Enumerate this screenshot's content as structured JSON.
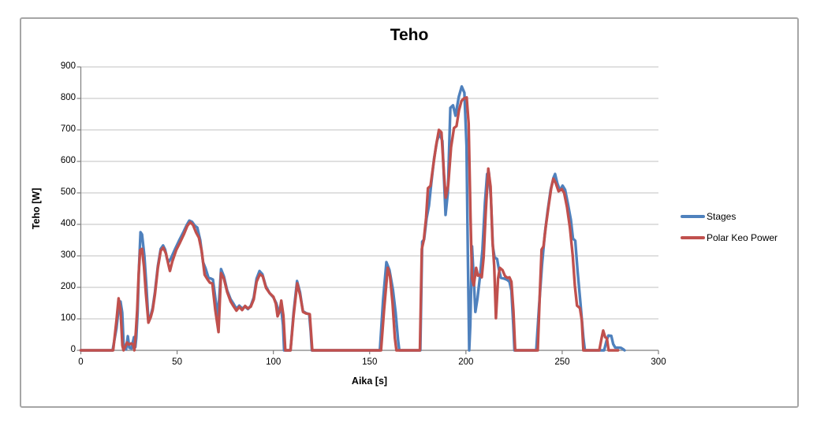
{
  "chart_data": {
    "type": "line",
    "title": "Teho",
    "xlabel": "Aika [s]",
    "ylabel": "Teho [W]",
    "xlim": [
      0,
      300
    ],
    "ylim": [
      0,
      900
    ],
    "x_ticks": [
      0,
      50,
      100,
      150,
      200,
      250,
      300
    ],
    "y_ticks": [
      0,
      100,
      200,
      300,
      400,
      500,
      600,
      700,
      800,
      900
    ],
    "grid": "horizontal",
    "legend_position": "right",
    "colors": {
      "grid": "#c0c0c0",
      "axis": "#7f7f7f",
      "frame_border": "#a6a6a6",
      "stages_blue": "#4F81BD",
      "polar_red": "#C0504D"
    },
    "series": [
      {
        "name": "Stages",
        "color": "#4F81BD",
        "points": [
          [
            0,
            0
          ],
          [
            16.5,
            0
          ],
          [
            18.5,
            70
          ],
          [
            19.8,
            140
          ],
          [
            20.6,
            155
          ],
          [
            21.5,
            120
          ],
          [
            22.3,
            10
          ],
          [
            23.5,
            3
          ],
          [
            24.4,
            45
          ],
          [
            25.2,
            8
          ],
          [
            26.3,
            6
          ],
          [
            27.6,
            42
          ],
          [
            28.3,
            10
          ],
          [
            28.8,
            40
          ],
          [
            29.5,
            120
          ],
          [
            30.2,
            260
          ],
          [
            31,
            375
          ],
          [
            31.8,
            368
          ],
          [
            33,
            300
          ],
          [
            34,
            210
          ],
          [
            35.1,
            95
          ],
          [
            36.3,
            110
          ],
          [
            37.3,
            135
          ],
          [
            38.5,
            185
          ],
          [
            40,
            268
          ],
          [
            41.5,
            322
          ],
          [
            42.7,
            333
          ],
          [
            43.8,
            320
          ],
          [
            44.8,
            290
          ],
          [
            45.8,
            282
          ],
          [
            47,
            295
          ],
          [
            49,
            322
          ],
          [
            51,
            348
          ],
          [
            53,
            372
          ],
          [
            55,
            398
          ],
          [
            56.3,
            412
          ],
          [
            57.8,
            408
          ],
          [
            59.3,
            395
          ],
          [
            60.5,
            390
          ],
          [
            62,
            350
          ],
          [
            63.5,
            280
          ],
          [
            64.8,
            260
          ],
          [
            66.3,
            230
          ],
          [
            67.5,
            228
          ],
          [
            68.6,
            225
          ],
          [
            70,
            160
          ],
          [
            71.3,
            110
          ],
          [
            72.8,
            258
          ],
          [
            74.3,
            235
          ],
          [
            76,
            190
          ],
          [
            77.8,
            162
          ],
          [
            79.3,
            148
          ],
          [
            80.8,
            132
          ],
          [
            82.3,
            142
          ],
          [
            83.8,
            133
          ],
          [
            85.3,
            139
          ],
          [
            86.8,
            131
          ],
          [
            88.3,
            142
          ],
          [
            89.8,
            168
          ],
          [
            91.3,
            228
          ],
          [
            92.8,
            252
          ],
          [
            94.3,
            242
          ],
          [
            96,
            205
          ],
          [
            98,
            182
          ],
          [
            100,
            168
          ],
          [
            101.5,
            150
          ],
          [
            102.8,
            122
          ],
          [
            104,
            138
          ],
          [
            105,
            80
          ],
          [
            105.6,
            0
          ],
          [
            108.9,
            0
          ],
          [
            110.5,
            120
          ],
          [
            112.3,
            220
          ],
          [
            113.8,
            185
          ],
          [
            115.3,
            125
          ],
          [
            117,
            118
          ],
          [
            118.6,
            115
          ],
          [
            119.4,
            60
          ],
          [
            120,
            0
          ],
          [
            155.3,
            0
          ],
          [
            157,
            160
          ],
          [
            158.7,
            280
          ],
          [
            160.3,
            255
          ],
          [
            162.1,
            192
          ],
          [
            163.5,
            120
          ],
          [
            164.8,
            30
          ],
          [
            165.4,
            0
          ],
          [
            176.3,
            0
          ],
          [
            177.3,
            345
          ],
          [
            178.3,
            352
          ],
          [
            179.6,
            420
          ],
          [
            180.8,
            460
          ],
          [
            182,
            530
          ],
          [
            183.5,
            610
          ],
          [
            185,
            665
          ],
          [
            186.3,
            688
          ],
          [
            187.8,
            665
          ],
          [
            189.4,
            430
          ],
          [
            190.6,
            500
          ],
          [
            191.9,
            770
          ],
          [
            193.3,
            778
          ],
          [
            194.6,
            745
          ],
          [
            196.3,
            805
          ],
          [
            197.8,
            838
          ],
          [
            199.2,
            818
          ],
          [
            200.3,
            650
          ],
          [
            201,
            300
          ],
          [
            201.7,
            0
          ],
          [
            202.3,
            80
          ],
          [
            203.2,
            330
          ],
          [
            204.2,
            210
          ],
          [
            204.9,
            122
          ],
          [
            206,
            165
          ],
          [
            207.3,
            235
          ],
          [
            208.6,
            320
          ],
          [
            209.9,
            470
          ],
          [
            211,
            560
          ],
          [
            211.9,
            565
          ],
          [
            213,
            480
          ],
          [
            214,
            330
          ],
          [
            214.9,
            295
          ],
          [
            216.2,
            290
          ],
          [
            217.2,
            255
          ],
          [
            218.2,
            230
          ],
          [
            219.8,
            228
          ],
          [
            221.4,
            224
          ],
          [
            222.6,
            218
          ],
          [
            223.6,
            190
          ],
          [
            224.6,
            80
          ],
          [
            225.2,
            0
          ],
          [
            236.5,
            0
          ],
          [
            238,
            140
          ],
          [
            239.5,
            270
          ],
          [
            241,
            370
          ],
          [
            242.5,
            445
          ],
          [
            244,
            510
          ],
          [
            245.5,
            548
          ],
          [
            246.3,
            560
          ],
          [
            247.5,
            530
          ],
          [
            248.8,
            508
          ],
          [
            250.2,
            523
          ],
          [
            251.5,
            510
          ],
          [
            253,
            465
          ],
          [
            254.5,
            415
          ],
          [
            255.6,
            355
          ],
          [
            256.8,
            348
          ],
          [
            258,
            250
          ],
          [
            259.5,
            150
          ],
          [
            261,
            40
          ],
          [
            261.8,
            0
          ],
          [
            271.8,
            0
          ],
          [
            273,
            30
          ],
          [
            274,
            47
          ],
          [
            275.5,
            46
          ],
          [
            276.5,
            20
          ],
          [
            277.5,
            9
          ],
          [
            280.5,
            8
          ],
          [
            281.8,
            3
          ],
          [
            282.4,
            0
          ]
        ]
      },
      {
        "name": "Polar Keo Power",
        "color": "#C0504D",
        "points": [
          [
            0,
            0
          ],
          [
            16.8,
            0
          ],
          [
            18.5,
            95
          ],
          [
            19.6,
            165
          ],
          [
            20.6,
            130
          ],
          [
            21.6,
            15
          ],
          [
            22.2,
            0
          ],
          [
            24,
            25
          ],
          [
            25,
            18
          ],
          [
            26.2,
            22
          ],
          [
            27.2,
            18
          ],
          [
            27.8,
            0
          ],
          [
            28.6,
            60
          ],
          [
            29.3,
            130
          ],
          [
            30,
            240
          ],
          [
            30.8,
            318
          ],
          [
            31.8,
            322
          ],
          [
            32.8,
            265
          ],
          [
            33.8,
            180
          ],
          [
            35.1,
            88
          ],
          [
            36.3,
            105
          ],
          [
            37.3,
            128
          ],
          [
            38.5,
            178
          ],
          [
            40,
            262
          ],
          [
            41.5,
            316
          ],
          [
            42.8,
            326
          ],
          [
            44.2,
            308
          ],
          [
            45.5,
            272
          ],
          [
            46.3,
            252
          ],
          [
            47.5,
            282
          ],
          [
            49.5,
            318
          ],
          [
            51.5,
            342
          ],
          [
            53.5,
            368
          ],
          [
            55.3,
            395
          ],
          [
            56.8,
            407
          ],
          [
            58.3,
            398
          ],
          [
            59.8,
            375
          ],
          [
            61.3,
            358
          ],
          [
            62.8,
            315
          ],
          [
            64.3,
            240
          ],
          [
            65.8,
            225
          ],
          [
            67,
            215
          ],
          [
            68.3,
            212
          ],
          [
            69.8,
            130
          ],
          [
            71.5,
            58
          ],
          [
            72.8,
            245
          ],
          [
            74.3,
            228
          ],
          [
            76,
            185
          ],
          [
            77.8,
            155
          ],
          [
            79.3,
            140
          ],
          [
            80.8,
            126
          ],
          [
            82.3,
            138
          ],
          [
            83.8,
            128
          ],
          [
            85.3,
            141
          ],
          [
            86.8,
            133
          ],
          [
            88.3,
            139
          ],
          [
            89.8,
            162
          ],
          [
            91.3,
            218
          ],
          [
            93,
            242
          ],
          [
            94.5,
            235
          ],
          [
            96.2,
            198
          ],
          [
            98,
            182
          ],
          [
            100,
            170
          ],
          [
            101.3,
            148
          ],
          [
            102.2,
            108
          ],
          [
            103.3,
            125
          ],
          [
            104.1,
            158
          ],
          [
            105.2,
            110
          ],
          [
            106.2,
            0
          ],
          [
            108.9,
            0
          ],
          [
            110.5,
            110
          ],
          [
            112.4,
            213
          ],
          [
            113.9,
            175
          ],
          [
            115.4,
            122
          ],
          [
            117,
            117
          ],
          [
            118.9,
            115
          ],
          [
            119.6,
            55
          ],
          [
            120.2,
            0
          ],
          [
            155.9,
            0
          ],
          [
            157.5,
            130
          ],
          [
            159.4,
            262
          ],
          [
            160.6,
            235
          ],
          [
            161.9,
            150
          ],
          [
            163.1,
            40
          ],
          [
            163.9,
            0
          ],
          [
            176.1,
            0
          ],
          [
            177.1,
            322
          ],
          [
            178.1,
            350
          ],
          [
            179.3,
            420
          ],
          [
            180.3,
            515
          ],
          [
            181.6,
            522
          ],
          [
            183,
            585
          ],
          [
            184.5,
            650
          ],
          [
            186,
            700
          ],
          [
            187.3,
            692
          ],
          [
            188.6,
            560
          ],
          [
            189.5,
            485
          ],
          [
            190.8,
            525
          ],
          [
            192.3,
            645
          ],
          [
            193.8,
            706
          ],
          [
            195.1,
            712
          ],
          [
            196.4,
            762
          ],
          [
            197.7,
            792
          ],
          [
            199,
            800
          ],
          [
            200.4,
            803
          ],
          [
            201.4,
            720
          ],
          [
            202.4,
            420
          ],
          [
            203.2,
            228
          ],
          [
            204.1,
            206
          ],
          [
            205.3,
            262
          ],
          [
            206.2,
            237
          ],
          [
            207.2,
            240
          ],
          [
            208.2,
            232
          ],
          [
            209.2,
            295
          ],
          [
            210.3,
            440
          ],
          [
            211.6,
            577
          ],
          [
            212.8,
            520
          ],
          [
            213.8,
            350
          ],
          [
            214.7,
            268
          ],
          [
            215.6,
            102
          ],
          [
            216.7,
            228
          ],
          [
            217.6,
            262
          ],
          [
            219,
            255
          ],
          [
            220.3,
            236
          ],
          [
            221.6,
            230
          ],
          [
            222.6,
            232
          ],
          [
            223.6,
            218
          ],
          [
            224.7,
            125
          ],
          [
            225.6,
            0
          ],
          [
            237.3,
            0
          ],
          [
            238.5,
            195
          ],
          [
            239.3,
            320
          ],
          [
            240.3,
            330
          ],
          [
            241.5,
            395
          ],
          [
            243,
            460
          ],
          [
            244.3,
            515
          ],
          [
            245.4,
            545
          ],
          [
            246.6,
            532
          ],
          [
            248.1,
            505
          ],
          [
            249.8,
            512
          ],
          [
            251,
            500
          ],
          [
            252.5,
            455
          ],
          [
            254,
            390
          ],
          [
            255.5,
            300
          ],
          [
            256.6,
            205
          ],
          [
            257.7,
            142
          ],
          [
            259.2,
            134
          ],
          [
            260.2,
            95
          ],
          [
            261,
            0
          ],
          [
            269.3,
            0
          ],
          [
            270.5,
            40
          ],
          [
            271.3,
            63
          ],
          [
            272.3,
            42
          ],
          [
            273.2,
            38
          ],
          [
            274.1,
            0
          ],
          [
            279,
            0
          ]
        ]
      }
    ]
  }
}
